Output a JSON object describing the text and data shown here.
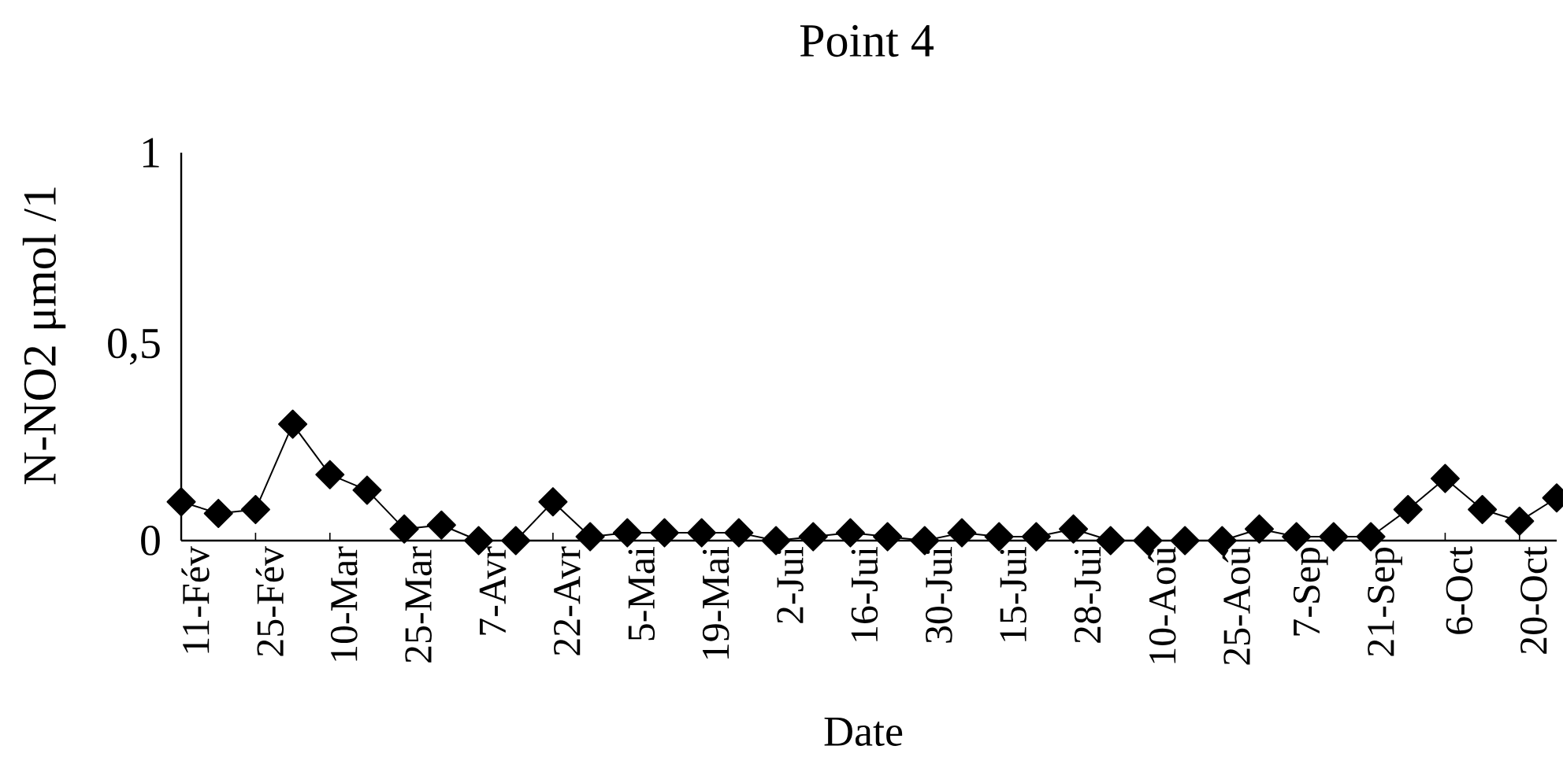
{
  "chart_data": {
    "type": "line",
    "title": "Point 4",
    "xlabel": "Date",
    "ylabel": "N-NO2 μmol  /1",
    "categories": [
      "11-Fév",
      null,
      "25-Fév",
      null,
      "10-Mar",
      null,
      "25-Mar",
      null,
      "7-Avr",
      null,
      "22-Avr",
      null,
      "5-Mai",
      null,
      "19-Mai",
      null,
      "2-Jui",
      null,
      "16-Jui",
      null,
      "30-Jui",
      null,
      "15-Jui",
      null,
      "28-Jui",
      null,
      "10-Aoû",
      null,
      "25-Aoû",
      null,
      "7-Sep",
      null,
      "21-Sep",
      null,
      "6-Oct",
      null,
      "20-Oct",
      null
    ],
    "values": [
      0.1,
      0.07,
      0.08,
      0.3,
      0.17,
      0.13,
      0.03,
      0.04,
      0,
      0,
      0.1,
      0.01,
      0.02,
      0.02,
      0.02,
      0.02,
      0,
      0.01,
      0.02,
      0.01,
      0,
      0.02,
      0.01,
      0.01,
      0.03,
      0,
      0,
      0,
      0,
      0.03,
      0.01,
      0.01,
      0.01,
      0.08,
      0.16,
      0.08,
      0.05,
      0.11
    ],
    "color": "#000000",
    "marker": "diamond",
    "line_style": "solid",
    "ylim": [
      0,
      1
    ],
    "yticks": [
      0,
      {
        "value": 0.5,
        "label": "0,5"
      },
      1
    ]
  }
}
